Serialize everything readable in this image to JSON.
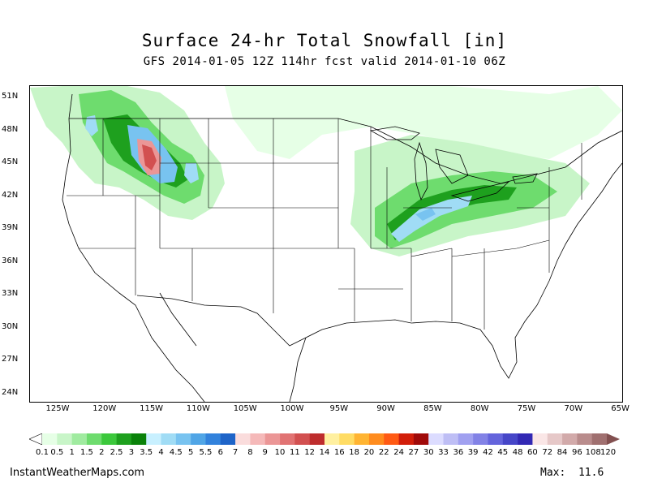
{
  "title": "Surface 24-hr Total Snowfall [in]",
  "subtitle": "GFS 2014-01-05 12Z 114hr fcst valid 2014-01-10 06Z",
  "latitudes": [
    "51N",
    "48N",
    "45N",
    "42N",
    "39N",
    "36N",
    "33N",
    "30N",
    "27N",
    "24N"
  ],
  "longitudes": [
    "125W",
    "120W",
    "115W",
    "110W",
    "105W",
    "100W",
    "95W",
    "90W",
    "85W",
    "80W",
    "75W",
    "70W",
    "65W"
  ],
  "colorbar": {
    "labels": [
      "0.1",
      "0.5",
      "1",
      "1.5",
      "2",
      "2.5",
      "3",
      "3.5",
      "4",
      "4.5",
      "5",
      "5.5",
      "6",
      "7",
      "8",
      "9",
      "10",
      "11",
      "12",
      "14",
      "16",
      "18",
      "20",
      "22",
      "24",
      "27",
      "30",
      "33",
      "36",
      "39",
      "42",
      "45",
      "48",
      "60",
      "72",
      "84",
      "96",
      "108",
      "120"
    ],
    "colors": [
      "#e6ffe6",
      "#c8f5c8",
      "#a0eba0",
      "#6edc6e",
      "#3cc83c",
      "#1ea01e",
      "#0a820a",
      "#c8f0ff",
      "#a0dcf5",
      "#78c3f0",
      "#50a5e6",
      "#3282dc",
      "#1e64c8",
      "#fadcdc",
      "#f5b9b9",
      "#eb9696",
      "#e17373",
      "#d25050",
      "#be2d2d",
      "#fff0a0",
      "#ffdc64",
      "#ffb432",
      "#ff8c1e",
      "#ff5a14",
      "#d21e0a",
      "#a00a0a",
      "#dcdcff",
      "#bebef5",
      "#a0a0f0",
      "#8282e6",
      "#6464dc",
      "#4646c8",
      "#3228b4",
      "#fae6e6",
      "#e6c8c8",
      "#d2aaaa",
      "#b98c8c",
      "#a07070",
      "#825050"
    ]
  },
  "footer": {
    "site": "InstantWeatherMaps.com",
    "max_label": "Max:",
    "max_value": "11.6"
  }
}
